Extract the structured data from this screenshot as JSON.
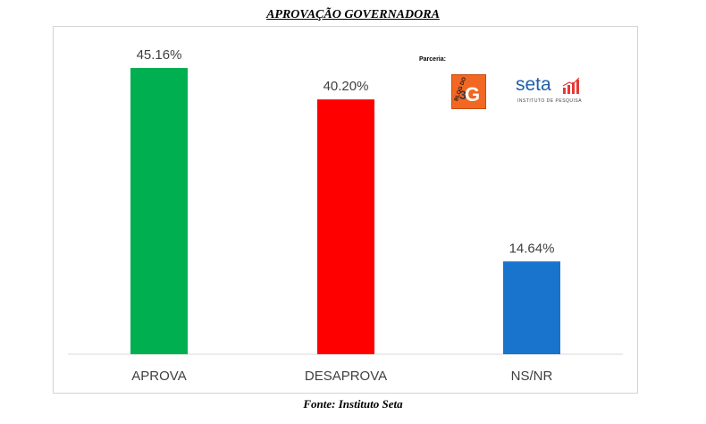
{
  "title": "APROVAÇÃO GOVERNADORA",
  "source": "Fonte: Instituto Seta",
  "partner": {
    "label": "Parceria:",
    "blog_logo_text": "BLOG DO BG",
    "seta_logo_text": "seta",
    "seta_logo_subtitle": "INSTITUTO DE PESQUISA"
  },
  "colors": {
    "aprova": "#00b050",
    "desaprova": "#ff0000",
    "nsnr": "#1874cd",
    "axis": "#d9d9d9"
  },
  "chart_data": {
    "type": "bar",
    "title": "APROVAÇÃO GOVERNADORA",
    "categories": [
      "APROVA",
      "DESAPROVA",
      "NS/NR"
    ],
    "values": [
      45.16,
      40.2,
      14.64
    ],
    "labels": [
      "45.16%",
      "40.20%",
      "14.64%"
    ],
    "xlabel": "",
    "ylabel": "",
    "ylim": [
      0,
      50
    ],
    "grid": false,
    "legend": "none"
  }
}
